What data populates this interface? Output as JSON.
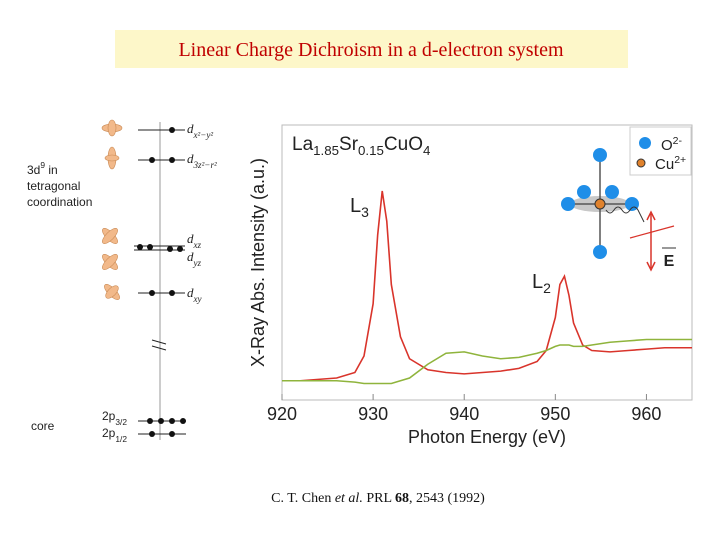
{
  "title": "Linear Charge Dichroism in a d-electron system",
  "citation": [
    "C. T. Chen ",
    "et al.",
    " PRL ",
    "68",
    ", 2543 (1992)"
  ],
  "diagram": {
    "valence_label": {
      "line1": [
        "3d",
        "9",
        " in"
      ],
      "line2": "tetragonal",
      "line3": "coordination"
    },
    "core_label": "core",
    "levels": [
      {
        "name": "d",
        "sub": "x²−y²"
      },
      {
        "name": "d",
        "sub": "3z²−r²"
      },
      {
        "name": "d",
        "sub": "xz"
      },
      {
        "name": "d",
        "sub": "yz"
      },
      {
        "name": "d",
        "sub": "xy"
      }
    ],
    "core_levels": [
      {
        "name": "2p",
        "sub": "3/2"
      },
      {
        "name": "2p",
        "sub": "1/2"
      }
    ]
  },
  "chart_data": {
    "type": "line",
    "title_parts": [
      "La",
      "1.85",
      "Sr",
      "0.15",
      "CuO",
      "4"
    ],
    "x_label": "Photon Energy (eV)",
    "y_label": "X-Ray Abs. Intensity (a.u.)",
    "x": [
      920,
      922,
      924,
      926,
      928,
      929,
      930,
      930.5,
      931,
      931.5,
      932,
      933,
      934,
      936,
      938,
      940,
      942,
      944,
      946,
      948,
      949,
      950,
      950.5,
      951,
      951.5,
      952,
      953,
      954,
      956,
      958,
      960,
      962,
      965
    ],
    "series": [
      {
        "color": "#d9342b",
        "values": [
          0.7,
          0.7,
          0.75,
          0.8,
          1.0,
          1.6,
          3.5,
          6.0,
          7.6,
          6.5,
          4.2,
          2.3,
          1.5,
          1.1,
          1.0,
          0.95,
          1.0,
          1.05,
          1.15,
          1.4,
          1.8,
          3.0,
          4.2,
          4.5,
          3.8,
          2.8,
          2.0,
          1.8,
          1.75,
          1.8,
          1.85,
          1.9,
          1.9
        ]
      },
      {
        "color": "#8fb43c",
        "values": [
          0.7,
          0.7,
          0.7,
          0.7,
          0.65,
          0.6,
          0.6,
          0.6,
          0.6,
          0.6,
          0.6,
          0.7,
          0.8,
          1.3,
          1.7,
          1.75,
          1.6,
          1.5,
          1.55,
          1.7,
          1.8,
          1.95,
          2.0,
          2.0,
          2.0,
          1.95,
          1.95,
          2.0,
          2.1,
          2.15,
          2.2,
          2.2,
          2.2
        ]
      }
    ],
    "xlim": [
      920,
      965
    ],
    "ylim": [
      0,
      10
    ],
    "xticks": [
      920,
      930,
      940,
      950,
      960
    ],
    "annotations": [
      {
        "text": "L",
        "sub": "3"
      },
      {
        "text": "L",
        "sub": "2"
      }
    ],
    "inset": {
      "legend": [
        {
          "text": "O",
          "sup": "2-",
          "color": "#1f8ee8"
        },
        {
          "text": "Cu",
          "sup": "2+",
          "color": "#e0822c"
        }
      ],
      "field_label": "E"
    }
  }
}
